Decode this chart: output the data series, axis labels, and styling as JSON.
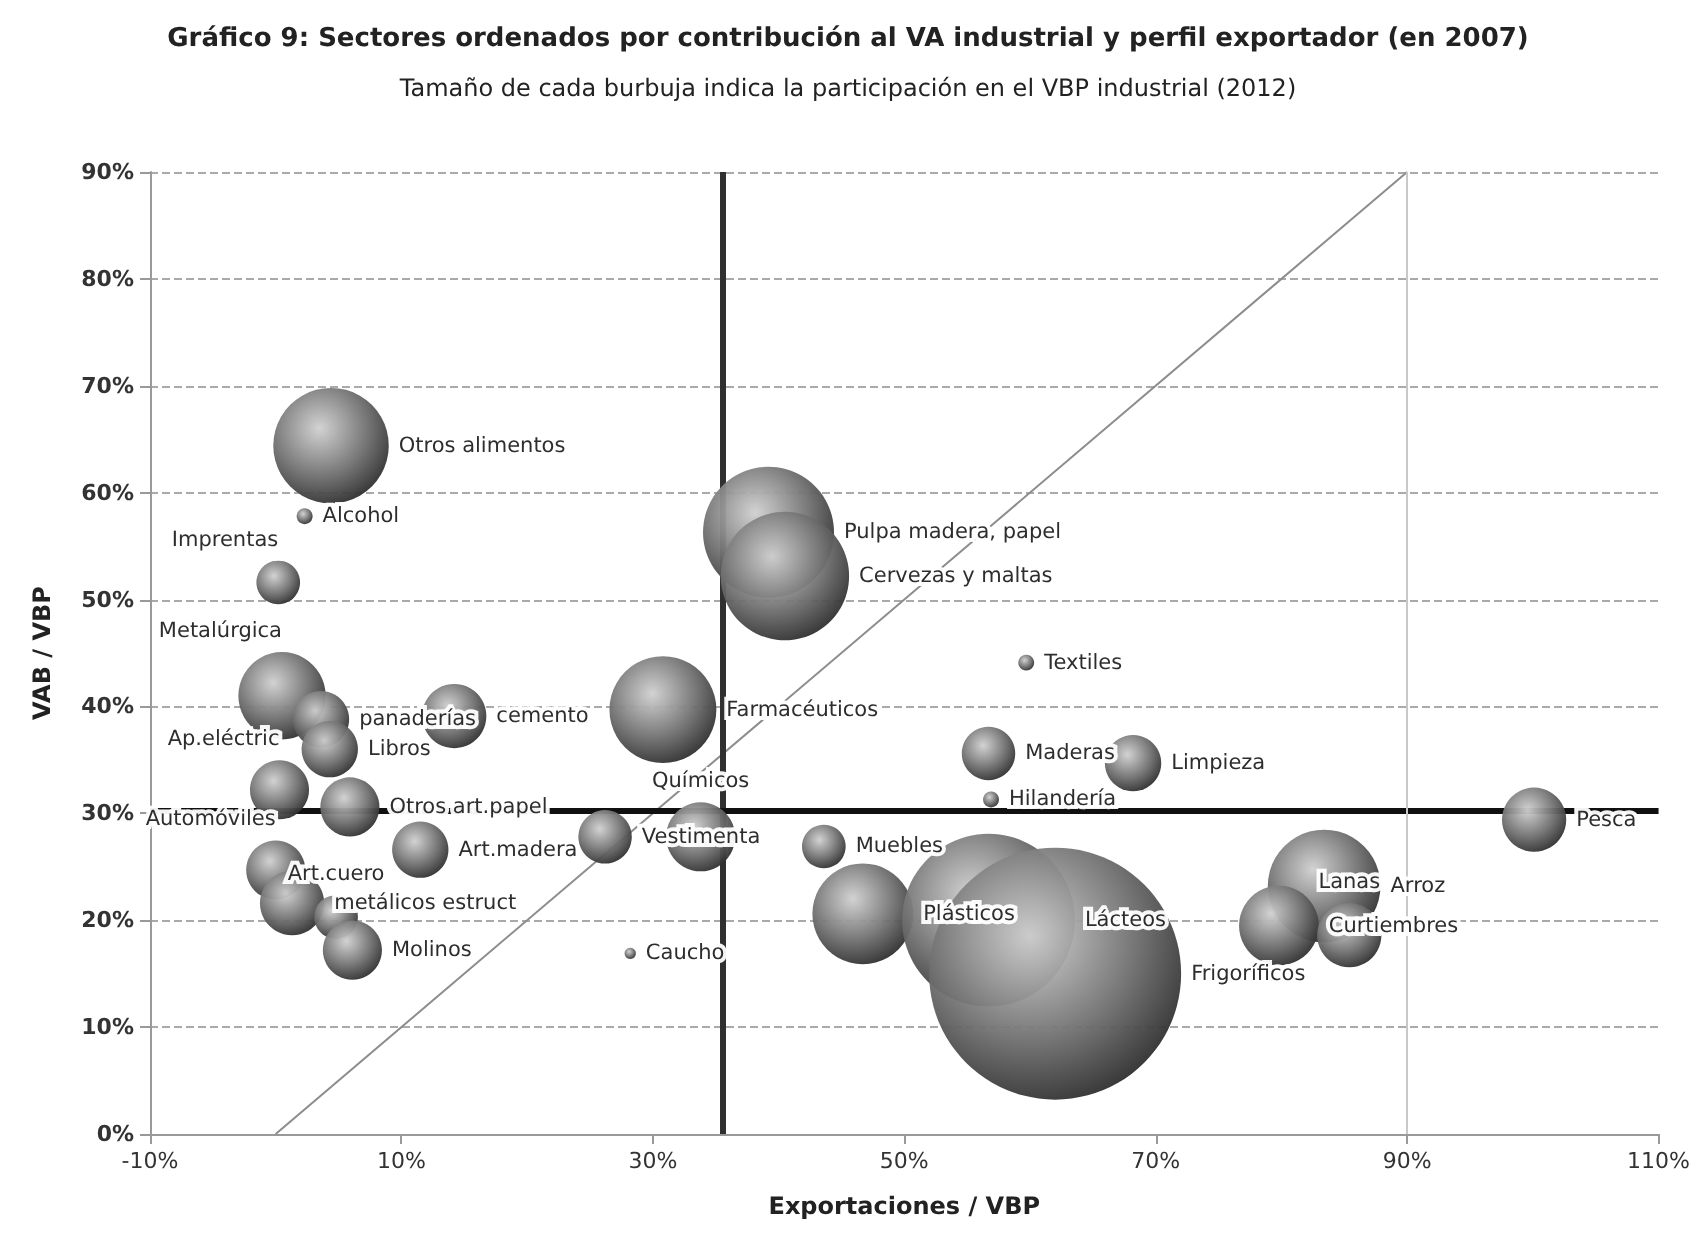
{
  "chart_data": {
    "type": "bubble",
    "title": "Gráfico 9: Sectores ordenados por contribución al VA industrial y perfil exportador (en 2007)",
    "subtitle": "Tamaño de cada burbuja indica la participación en el VBP industrial (2012)",
    "xlabel": "Exportaciones / VBP",
    "ylabel": "VAB / VBP",
    "series": [
      {
        "color": "#6e6e6e",
        "x": [
          4.4,
          2.3,
          0.2,
          0.5,
          3.6,
          4.3,
          14.2,
          0.3,
          5.9,
          11.5,
          26.2,
          0,
          1.3,
          4.8,
          6.1,
          28.2,
          39.2,
          40.5,
          30.8,
          33.8,
          59.7,
          56.7,
          56.9,
          43.6,
          46.7,
          56.7,
          62,
          68.2,
          100.1,
          83.4,
          79.8,
          85.4
        ],
        "values": [
          64.4,
          57.8,
          51.6,
          41,
          38.8,
          36,
          39.1,
          32.2,
          30.6,
          26.6,
          27.8,
          24.7,
          21.6,
          20.3,
          17.2,
          16.9,
          56.3,
          52.2,
          39.7,
          27.8,
          44.1,
          35.6,
          31.3,
          26.9,
          20.6,
          20,
          15,
          34.7,
          29.4,
          23.2,
          19.5,
          18.6
        ],
        "sizes": [
          0.21,
          0.004,
          0.03,
          0.12,
          0.05,
          0.05,
          0.065,
          0.055,
          0.055,
          0.05,
          0.045,
          0.055,
          0.065,
          0.03,
          0.055,
          0.002,
          0.27,
          0.26,
          0.18,
          0.075,
          0.004,
          0.045,
          0.004,
          0.03,
          0.16,
          0.47,
          1,
          0.05,
          0.065,
          0.2,
          0.1,
          0.065
        ],
        "value_labels": [
          "Otros alimentos",
          "Alcohol",
          "Imprentas",
          "Metalúrgica",
          "panaderías",
          "Libros",
          "cemento",
          "Ap.eléctric",
          "Otros art.papel",
          "Art.madera",
          "Vestimenta",
          "Automóviles",
          "metálicos estruct",
          "Art.cuero",
          "Molinos",
          "Caucho",
          "Pulpa madera, papel",
          "Cervezas y maltas",
          "Farmacéuticos",
          "Químicos",
          "Textiles",
          "Maderas",
          "Hilandería",
          "Muebles",
          "Plásticos",
          "Lácteos",
          "Frigoríficos",
          "Limpieza",
          "Pesca",
          "Arroz",
          "Curtiembres",
          "Lanas"
        ]
      },
      {
        "type": "line",
        "color": "#8c8c8c",
        "x": [
          0,
          90
        ],
        "values": [
          0,
          90
        ]
      }
    ],
    "ref_lines": [
      {
        "axis": "x",
        "value": 35.6,
        "color": "#303030"
      },
      {
        "axis": "y",
        "value": 30.3,
        "color": "#101010"
      },
      {
        "axis": "x",
        "value": 90,
        "color": "#c8c8c8"
      }
    ],
    "xlim": [
      -10,
      110
    ],
    "xticks": [
      {
        "value": -10,
        "label": "-10%"
      },
      {
        "value": 10,
        "label": "10%"
      },
      {
        "value": 30,
        "label": "30%"
      },
      {
        "value": 50,
        "label": "50%"
      },
      {
        "value": 70,
        "label": "70%"
      },
      {
        "value": 90,
        "label": "90%"
      },
      {
        "value": 110,
        "label": "110%"
      }
    ],
    "ylim": [
      0,
      90
    ],
    "yticks": [
      {
        "value": 0,
        "label": "0%"
      },
      {
        "value": 10,
        "label": "10%"
      },
      {
        "value": 20,
        "label": "20%"
      },
      {
        "value": 30,
        "label": "30%"
      },
      {
        "value": 40,
        "label": "40%"
      },
      {
        "value": 50,
        "label": "50%"
      },
      {
        "value": 60,
        "label": "60%"
      },
      {
        "value": 70,
        "label": "70%"
      },
      {
        "value": 80,
        "label": "80%"
      },
      {
        "value": 90,
        "label": "90%"
      }
    ],
    "grid": "y"
  }
}
